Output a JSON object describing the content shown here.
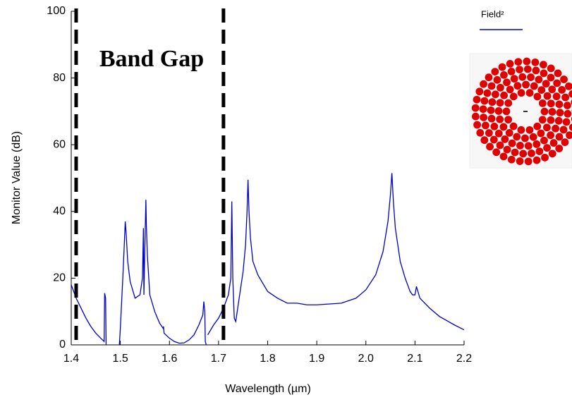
{
  "chart_data": {
    "type": "line",
    "annotation": "Band Gap",
    "xlabel": "Wavelength (µm)",
    "ylabel": "Monitor Value (dB)",
    "xlim": [
      1.4,
      2.2
    ],
    "ylim": [
      0,
      100
    ],
    "xticks": [
      1.4,
      1.5,
      1.6,
      1.7,
      1.8,
      1.9,
      {
        "value": 2,
        "label": "2.0"
      },
      2.1,
      2.2
    ],
    "yticks": [
      0,
      20,
      40,
      60,
      80,
      100
    ],
    "vlines": [
      1.41,
      1.71
    ],
    "x": [
      1.4,
      1.405,
      1.41,
      1.42,
      1.43,
      1.44,
      1.45,
      1.46,
      1.467,
      1.468,
      1.47,
      1.471,
      1.485,
      1.498,
      1.5,
      1.505,
      1.508,
      1.51,
      1.512,
      1.515,
      1.52,
      1.53,
      1.54,
      1.545,
      1.547,
      1.548,
      1.55,
      1.552,
      1.553,
      1.555,
      1.56,
      1.57,
      1.58,
      1.587,
      1.588,
      1.589,
      1.6,
      1.61,
      1.62,
      1.63,
      1.64,
      1.65,
      1.66,
      1.668,
      1.67,
      1.672,
      1.673,
      1.675,
      1.676,
      1.678,
      1.69,
      1.7,
      1.71,
      1.72,
      1.725,
      1.727,
      1.729,
      1.732,
      1.735,
      1.74,
      1.75,
      1.755,
      1.758,
      1.76,
      1.762,
      1.765,
      1.77,
      1.78,
      1.8,
      1.82,
      1.84,
      1.86,
      1.88,
      1.9,
      1.95,
      1.98,
      2.0,
      2.02,
      2.035,
      2.045,
      2.05,
      2.053,
      2.056,
      2.06,
      2.07,
      2.08,
      2.09,
      2.095,
      2.1,
      2.103,
      2.11,
      2.13,
      2.15,
      2.18,
      2.2
    ],
    "series": [
      {
        "name": "Field²",
        "color": "#0000cc",
        "values": [
          18,
          16,
          14,
          11,
          8,
          5.5,
          3.5,
          2,
          1,
          15.5,
          14,
          0,
          null,
          0,
          5,
          20,
          30,
          37,
          33,
          25,
          19,
          14,
          15,
          20,
          35,
          15,
          30,
          43.5,
          36,
          27,
          15,
          10,
          6.5,
          5,
          5.5,
          3.5,
          2,
          1,
          0.5,
          0.6,
          1.5,
          3,
          6,
          9,
          13,
          10,
          1,
          0,
          null,
          3,
          6,
          8,
          11,
          15,
          20,
          43,
          20,
          8,
          7,
          12,
          22,
          30,
          40,
          49.5,
          40,
          32,
          25,
          21,
          16,
          14,
          12.5,
          12.5,
          12,
          12,
          12.5,
          14,
          16.5,
          21,
          28,
          37,
          45,
          51.5,
          43,
          35,
          25,
          20,
          16,
          15,
          15,
          17.5,
          14,
          11,
          8.5,
          6,
          4.5
        ]
      }
    ]
  }
}
